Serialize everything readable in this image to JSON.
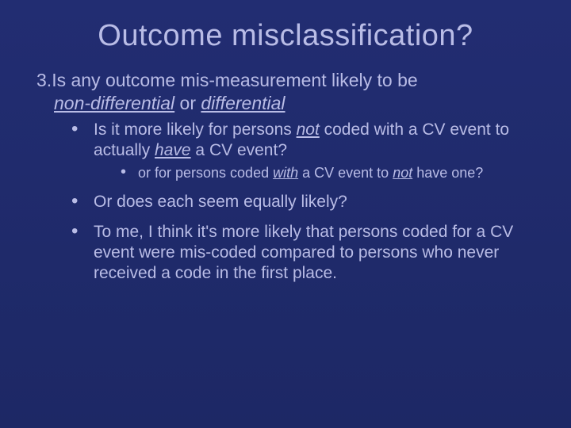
{
  "colors": {
    "background": "#1f2a6b",
    "title_color": "#b9bce6",
    "text_color": "#b9bce6",
    "bullet_color": "#b9bce6"
  },
  "typography": {
    "title_fontsize": 38,
    "body_fontsize": 23,
    "bullet1_fontsize": 21,
    "bullet2_fontsize": 18,
    "font_family": "Arial"
  },
  "title": "Outcome misclassification?",
  "question": {
    "number": "3.",
    "prefix": "Is any outcome mis-measurement likely to be ",
    "nd": "non-differential",
    "or": " or ",
    "d": "differential"
  },
  "bullets": [
    {
      "parts": {
        "a": "Is it more likely for persons ",
        "not": "not",
        "b": " coded with a CV event to actually ",
        "have": "have",
        "c": " a CV event?"
      },
      "sub": [
        {
          "parts": {
            "a": "or for persons coded ",
            "with": "with",
            "b": " a CV event to ",
            "not": "not",
            "c": " have one?"
          }
        }
      ]
    },
    {
      "text": "Or does each seem equally likely?"
    },
    {
      "text": "To me, I think it's more likely that persons coded for a CV event were mis-coded compared to persons who never received a code in the first place."
    }
  ]
}
